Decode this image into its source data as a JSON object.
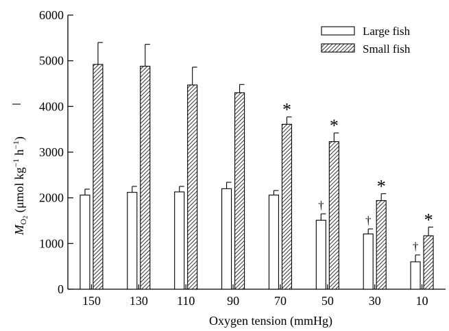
{
  "chart_data": {
    "type": "bar",
    "categories": [
      "150",
      "130",
      "110",
      "90",
      "70",
      "50",
      "30",
      "10"
    ],
    "xlabel": "Oxygen tension (mmHg)",
    "ylabel": {
      "prefix": "M",
      "sub": "O",
      "sub2": "2",
      "text": " (μmol kg",
      "sup1": "−1",
      "mid": " h",
      "sup2": "−1",
      "end": ")"
    },
    "ylim": [
      0,
      6000
    ],
    "yticks": [
      0,
      1000,
      2000,
      3000,
      4000,
      5000,
      6000
    ],
    "grid": false,
    "legend_position": "top-right",
    "series": [
      {
        "name": "Large fish",
        "fill": "white",
        "values": [
          2060,
          2120,
          2130,
          2200,
          2060,
          1510,
          1210,
          600
        ],
        "errors": [
          130,
          130,
          120,
          140,
          100,
          140,
          110,
          150
        ],
        "markers": [
          "",
          "",
          "",
          "",
          "",
          "†",
          "†",
          "†"
        ]
      },
      {
        "name": "Small fish",
        "fill": "hatched",
        "values": [
          4920,
          4880,
          4470,
          4300,
          3610,
          3230,
          1940,
          1170
        ],
        "errors": [
          480,
          480,
          390,
          180,
          160,
          190,
          150,
          190
        ],
        "markers": [
          "",
          "",
          "",
          "",
          "*",
          "*",
          "*",
          "*"
        ]
      }
    ]
  }
}
